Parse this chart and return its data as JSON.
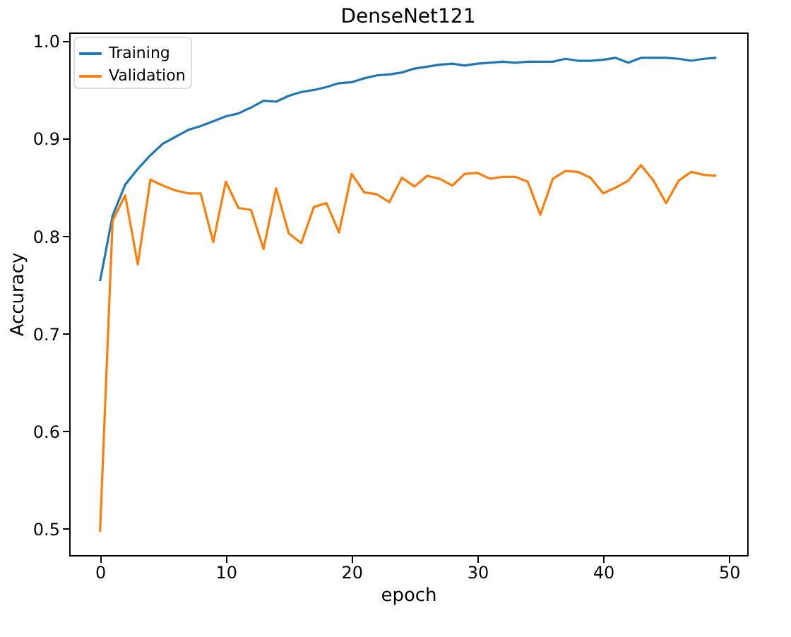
{
  "chart_data": {
    "type": "line",
    "title": "DenseNet121",
    "xlabel": "epoch",
    "ylabel": "Accuracy",
    "x": [
      0,
      1,
      2,
      3,
      4,
      5,
      6,
      7,
      8,
      9,
      10,
      11,
      12,
      13,
      14,
      15,
      16,
      17,
      18,
      19,
      20,
      21,
      22,
      23,
      24,
      25,
      26,
      27,
      28,
      29,
      30,
      31,
      32,
      33,
      34,
      35,
      36,
      37,
      38,
      39,
      40,
      41,
      42,
      43,
      44,
      45,
      46,
      47,
      48,
      49
    ],
    "series": [
      {
        "name": "Training",
        "color": "#1f77b4",
        "values": [
          0.754,
          0.821,
          0.853,
          0.869,
          0.883,
          0.895,
          0.902,
          0.909,
          0.913,
          0.918,
          0.923,
          0.926,
          0.932,
          0.939,
          0.938,
          0.944,
          0.948,
          0.95,
          0.953,
          0.957,
          0.958,
          0.962,
          0.965,
          0.966,
          0.968,
          0.972,
          0.974,
          0.976,
          0.977,
          0.975,
          0.977,
          0.978,
          0.979,
          0.978,
          0.979,
          0.979,
          0.979,
          0.982,
          0.98,
          0.98,
          0.981,
          0.983,
          0.978,
          0.983,
          0.983,
          0.983,
          0.982,
          0.98,
          0.982,
          0.983
        ]
      },
      {
        "name": "Validation",
        "color": "#ff7f0e",
        "values": [
          0.497,
          0.816,
          0.842,
          0.771,
          0.858,
          0.852,
          0.847,
          0.844,
          0.844,
          0.794,
          0.856,
          0.829,
          0.827,
          0.787,
          0.849,
          0.803,
          0.793,
          0.83,
          0.834,
          0.804,
          0.864,
          0.845,
          0.843,
          0.835,
          0.86,
          0.851,
          0.862,
          0.859,
          0.852,
          0.864,
          0.865,
          0.859,
          0.861,
          0.861,
          0.856,
          0.822,
          0.859,
          0.867,
          0.866,
          0.86,
          0.844,
          0.85,
          0.857,
          0.873,
          0.857,
          0.834,
          0.857,
          0.866,
          0.863,
          0.862
        ]
      }
    ],
    "xlim": [
      -2.45,
      51.45
    ],
    "xticks": [
      0,
      10,
      20,
      30,
      40,
      50
    ],
    "ylim": [
      0.473,
      1.009
    ],
    "yticks": [
      {
        "value": 0.5,
        "label": "0.5"
      },
      {
        "value": 0.6,
        "label": "0.6"
      },
      {
        "value": 0.7,
        "label": "0.7"
      },
      {
        "value": 0.8,
        "label": "0.8"
      },
      {
        "value": 0.9,
        "label": "0.9"
      },
      {
        "value": 1.0,
        "label": "1.0"
      }
    ],
    "grid": false,
    "legend": "top left",
    "marker": "none",
    "line_style": "solid"
  }
}
